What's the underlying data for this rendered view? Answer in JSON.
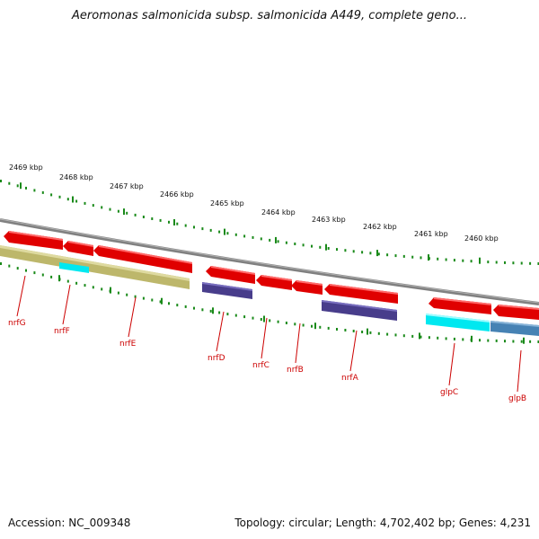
{
  "title": "Aeromonas salmonicida subsp. salmonicida A449, complete geno...",
  "footer": {
    "accession": "Accession: NC_009348",
    "summary": "Topology: circular; Length: 4,702,402 bp; Genes: 4,231"
  },
  "ruler": {
    "labels": [
      "2469 kbp",
      "2468 kbp",
      "2467 kbp",
      "2466 kbp",
      "2465 kbp",
      "2464 kbp",
      "2463 kbp",
      "2462 kbp",
      "2461 kbp",
      "2460 kbp"
    ],
    "tick_color": "#1a8a1a"
  },
  "genes": [
    {
      "name": "nrfG"
    },
    {
      "name": "nrfF"
    },
    {
      "name": "nrfE"
    },
    {
      "name": "nrfD"
    },
    {
      "name": "nrfC"
    },
    {
      "name": "nrfB"
    },
    {
      "name": "nrfA"
    },
    {
      "name": "glpC"
    },
    {
      "name": "glpB"
    }
  ],
  "colors": {
    "cds": "#e00000",
    "backbone": "#808080",
    "khaki": "#bdb76b",
    "darkslate": "#483d8b",
    "cyan": "#00ffff",
    "steelblue": "#4682b4",
    "label": "#cc0000"
  }
}
